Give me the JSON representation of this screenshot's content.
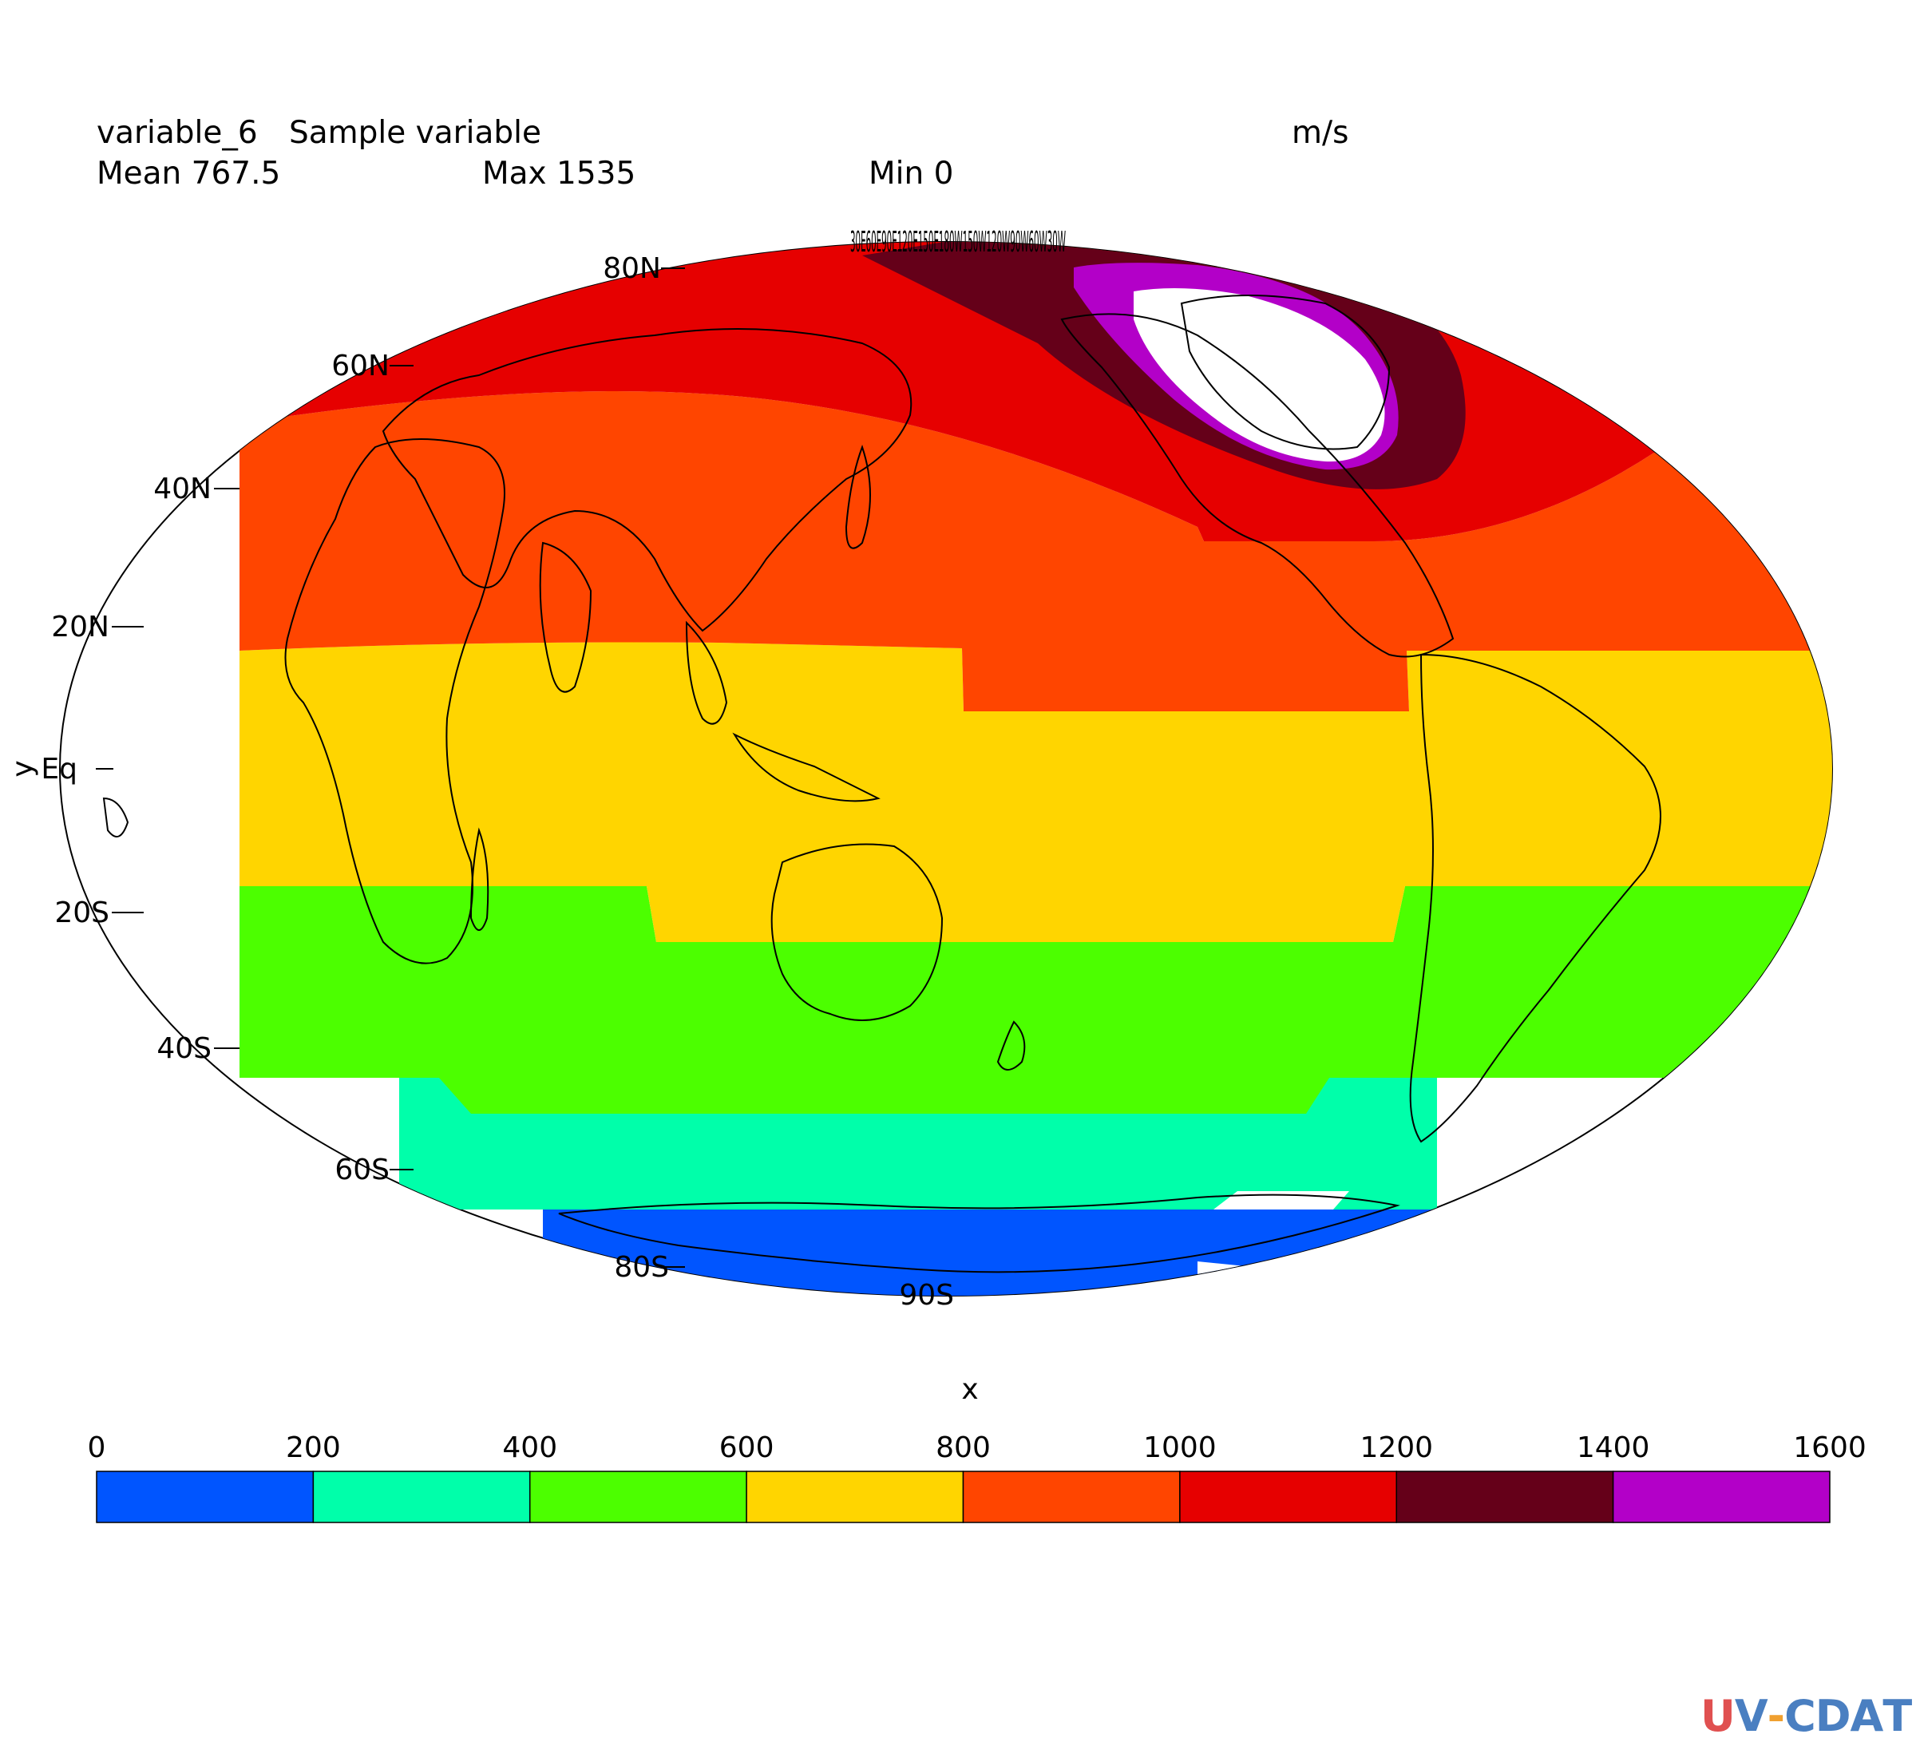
{
  "header": {
    "variable_name": "variable_6",
    "long_name": "Sample variable",
    "units": "m/s",
    "mean_label": "Mean 767.5",
    "max_label": "Max 1535",
    "min_label": "Min 0"
  },
  "axes": {
    "xlabel": "x",
    "ylabel": "y",
    "top_clutter": "30E60E90E120E150E180W150W120W90W60W30W"
  },
  "map": {
    "projection": "Mollweide",
    "lat_ticks": [
      "80N",
      "60N",
      "40N",
      "20N",
      "Eq",
      "20S",
      "40S",
      "60S",
      "80S",
      "90S"
    ],
    "band_colors": {
      "b0_200": "#0055ff",
      "b200_400": "#00ffaa",
      "b400_600": "#4cff00",
      "b600_800": "#ffd500",
      "b800_1000": "#ff4500",
      "b1000_1200": "#e60000",
      "b1200_1400": "#650019",
      "b1400_1600": "#b300c8"
    }
  },
  "colorbar": {
    "ticks": [
      "0",
      "200",
      "400",
      "600",
      "800",
      "1000",
      "1200",
      "1400",
      "1600"
    ],
    "colors": [
      "#0055ff",
      "#00ffaa",
      "#4cff00",
      "#ffd500",
      "#ff4500",
      "#e60000",
      "#650019",
      "#b300c8"
    ]
  },
  "logo": {
    "letters": [
      "U",
      "V",
      "-",
      "C",
      "D",
      "A",
      "T"
    ],
    "colors": [
      "#e05050",
      "#4a7fc1",
      "#f0a030",
      "#4a7fc1",
      "#4a7fc1",
      "#4a7fc1",
      "#4a7fc1"
    ]
  }
}
